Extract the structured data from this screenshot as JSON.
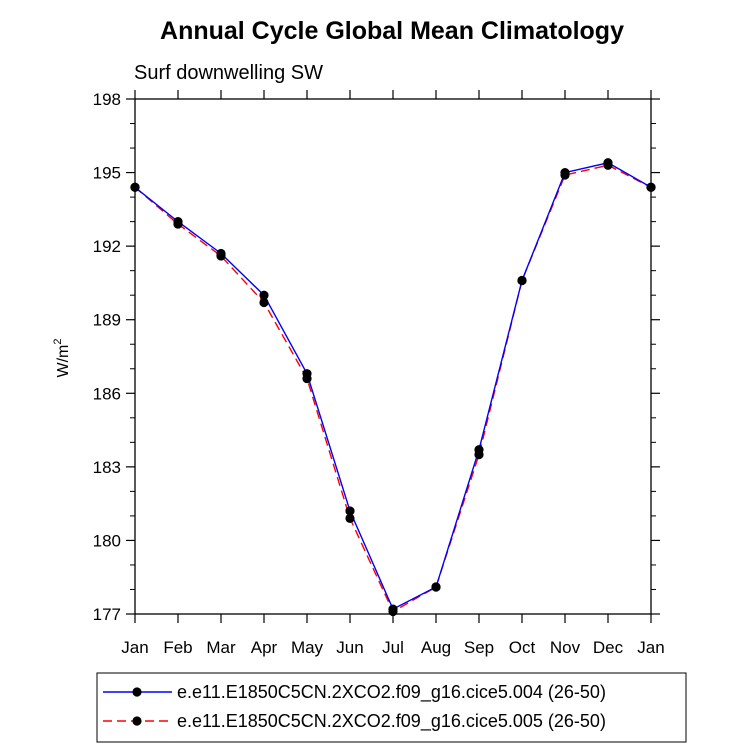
{
  "chart_data": {
    "type": "line",
    "title": "Annual Cycle Global Mean Climatology",
    "subtitle": "Surf downwelling SW",
    "ylabel_base": "W/m",
    "ylabel_sup": "2",
    "xlabel": "",
    "categories": [
      "Jan",
      "Feb",
      "Mar",
      "Apr",
      "May",
      "Jun",
      "Jul",
      "Aug",
      "Sep",
      "Oct",
      "Nov",
      "Dec",
      "Jan"
    ],
    "ylim": [
      177,
      198
    ],
    "yticks": [
      177,
      180,
      183,
      186,
      189,
      192,
      195,
      198
    ],
    "grid": false,
    "legend_position": "bottom",
    "series": [
      {
        "name": "e.e11.E1850C5CN.2XCO2.f09_g16.cice5.004 (26-50)",
        "color": "#0000ff",
        "dash": "solid",
        "values": [
          194.4,
          193.0,
          191.7,
          190.0,
          186.8,
          181.2,
          177.2,
          178.1,
          183.7,
          190.6,
          195.0,
          195.4,
          194.4
        ]
      },
      {
        "name": "e.e11.E1850C5CN.2XCO2.f09_g16.cice5.005 (26-50)",
        "color": "#ff0000",
        "dash": "dashed",
        "values": [
          194.4,
          192.9,
          191.6,
          189.7,
          186.6,
          180.9,
          177.1,
          178.1,
          183.5,
          190.6,
          194.9,
          195.3,
          194.4
        ]
      }
    ]
  }
}
